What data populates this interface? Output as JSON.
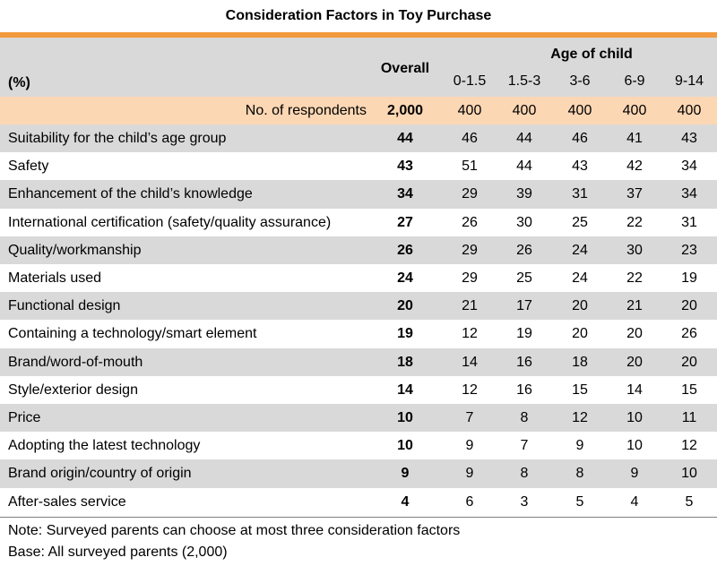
{
  "title": "Consideration Factors in Toy Purchase",
  "colors": {
    "accent": "#F29A3D",
    "header_bg": "#D9D9D9",
    "respondents_bg": "#FCD7B4",
    "stripe": "#D9D9D9"
  },
  "header": {
    "unit": "(%)",
    "overall": "Overall",
    "age_group": "Age of child",
    "age_columns": [
      "0-1.5",
      "1.5-3",
      "3-6",
      "6-9",
      "9-14"
    ]
  },
  "respondents": {
    "label": "No. of respondents",
    "overall": "2,000",
    "ages": [
      "400",
      "400",
      "400",
      "400",
      "400"
    ]
  },
  "rows": [
    {
      "factor": "Suitability for the child’s age group",
      "overall": "44",
      "ages": [
        "46",
        "44",
        "46",
        "41",
        "43"
      ]
    },
    {
      "factor": "Safety",
      "overall": "43",
      "ages": [
        "51",
        "44",
        "43",
        "42",
        "34"
      ]
    },
    {
      "factor": "Enhancement of the child’s knowledge",
      "overall": "34",
      "ages": [
        "29",
        "39",
        "31",
        "37",
        "34"
      ]
    },
    {
      "factor": "International certification (safety/quality assurance)",
      "overall": "27",
      "ages": [
        "26",
        "30",
        "25",
        "22",
        "31"
      ]
    },
    {
      "factor": "Quality/workmanship",
      "overall": "26",
      "ages": [
        "29",
        "26",
        "24",
        "30",
        "23"
      ]
    },
    {
      "factor": "Materials used",
      "overall": "24",
      "ages": [
        "29",
        "25",
        "24",
        "22",
        "19"
      ]
    },
    {
      "factor": "Functional design",
      "overall": "20",
      "ages": [
        "21",
        "17",
        "20",
        "21",
        "20"
      ]
    },
    {
      "factor": "Containing a technology/smart element",
      "overall": "19",
      "ages": [
        "12",
        "19",
        "20",
        "20",
        "26"
      ]
    },
    {
      "factor": "Brand/word-of-mouth",
      "overall": "18",
      "ages": [
        "14",
        "16",
        "18",
        "20",
        "20"
      ]
    },
    {
      "factor": "Style/exterior design",
      "overall": "14",
      "ages": [
        "12",
        "16",
        "15",
        "14",
        "15"
      ]
    },
    {
      "factor": "Price",
      "overall": "10",
      "ages": [
        "7",
        "8",
        "12",
        "10",
        "11"
      ]
    },
    {
      "factor": "Adopting the latest technology",
      "overall": "10",
      "ages": [
        "9",
        "7",
        "9",
        "10",
        "12"
      ]
    },
    {
      "factor": "Brand origin/country of origin",
      "overall": "9",
      "ages": [
        "9",
        "8",
        "8",
        "9",
        "10"
      ]
    },
    {
      "factor": "After-sales service",
      "overall": "4",
      "ages": [
        "6",
        "3",
        "5",
        "4",
        "5"
      ]
    }
  ],
  "notes": {
    "note": "Note: Surveyed parents can choose at most three consideration factors",
    "base": "Base: All surveyed parents (2,000)"
  }
}
